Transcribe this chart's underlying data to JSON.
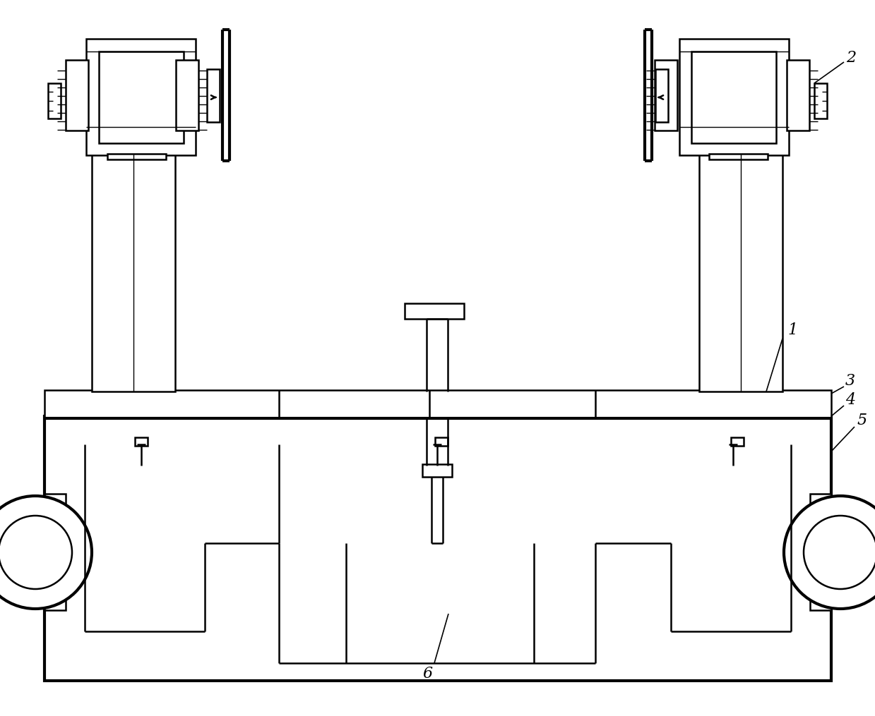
{
  "bg_color": "#ffffff",
  "line_color": "#000000",
  "lw": 1.8,
  "tlw": 3.0,
  "slw": 1.0,
  "label_fontsize": 16,
  "figsize": [
    12.39,
    10.15
  ],
  "dpi": 100
}
